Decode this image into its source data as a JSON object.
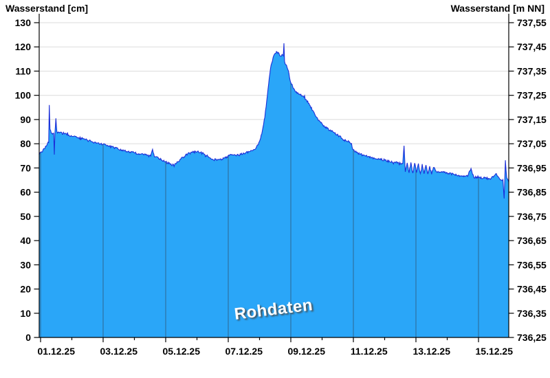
{
  "chart_data": {
    "type": "area",
    "watermark": "Rohdaten",
    "left_axis": {
      "label": "Wasserstand [cm]",
      "min": 0,
      "max": 130,
      "tick_step": 10,
      "ticks": [
        0,
        10,
        20,
        30,
        40,
        50,
        60,
        70,
        80,
        90,
        100,
        110,
        120,
        130
      ]
    },
    "right_axis": {
      "label": "Wasserstand [m NN]",
      "min": 736.25,
      "max": 737.55,
      "tick_step": 0.1,
      "ticks": [
        "736,25",
        "736,35",
        "736,45",
        "736,55",
        "736,65",
        "736,75",
        "736,85",
        "736,95",
        "737,05",
        "737,15",
        "737,25",
        "737,35",
        "737,45",
        "737,55"
      ]
    },
    "x_axis": {
      "tick_labels": [
        "01.12.25",
        "03.12.25",
        "05.12.25",
        "07.12.25",
        "09.12.25",
        "11.12.25",
        "13.12.25",
        "15.12.25"
      ],
      "label_center_days": [
        0.5,
        2.5,
        4.5,
        6.5,
        8.5,
        10.5,
        12.5,
        14.5
      ],
      "major_gridline_days": [
        0,
        2,
        4,
        6,
        8,
        10,
        12,
        14
      ],
      "minor_tick_days": [
        1,
        3,
        5,
        7,
        9,
        11,
        13
      ],
      "range_days": [
        -0.05,
        14.96
      ]
    },
    "grid": {
      "horizontal": true,
      "vertical_inside_area_only": true
    },
    "series": [
      {
        "name": "Wasserstand Rohdaten",
        "unit": "cm",
        "points": [
          [
            -0.05,
            75.5
          ],
          [
            0.08,
            77.5
          ],
          [
            0.18,
            79.0
          ],
          [
            0.26,
            80.5
          ],
          [
            0.28,
            96.0
          ],
          [
            0.3,
            86.0
          ],
          [
            0.34,
            84.5
          ],
          [
            0.42,
            84.3
          ],
          [
            0.44,
            75.5
          ],
          [
            0.46,
            84.2
          ],
          [
            0.49,
            90.5
          ],
          [
            0.52,
            85.0
          ],
          [
            0.6,
            84.5
          ],
          [
            0.75,
            84.3
          ],
          [
            0.9,
            83.6
          ],
          [
            1.05,
            83.0
          ],
          [
            1.2,
            82.6
          ],
          [
            1.35,
            82.2
          ],
          [
            1.5,
            81.4
          ],
          [
            1.65,
            80.8
          ],
          [
            1.8,
            80.3
          ],
          [
            2.0,
            79.8
          ],
          [
            2.2,
            78.9
          ],
          [
            2.4,
            78.3
          ],
          [
            2.6,
            77.4
          ],
          [
            2.8,
            76.8
          ],
          [
            3.0,
            76.2
          ],
          [
            3.2,
            75.7
          ],
          [
            3.4,
            75.2
          ],
          [
            3.52,
            74.9
          ],
          [
            3.58,
            77.7
          ],
          [
            3.64,
            74.6
          ],
          [
            3.8,
            73.8
          ],
          [
            4.0,
            72.6
          ],
          [
            4.15,
            71.5
          ],
          [
            4.25,
            71.3
          ],
          [
            4.4,
            72.6
          ],
          [
            4.55,
            74.4
          ],
          [
            4.7,
            75.8
          ],
          [
            4.85,
            76.5
          ],
          [
            5.0,
            76.6
          ],
          [
            5.1,
            76.4
          ],
          [
            5.25,
            75.6
          ],
          [
            5.4,
            74.3
          ],
          [
            5.5,
            73.6
          ],
          [
            5.65,
            73.3
          ],
          [
            5.8,
            73.6
          ],
          [
            5.95,
            74.6
          ],
          [
            6.1,
            75.4
          ],
          [
            6.25,
            75.0
          ],
          [
            6.4,
            75.6
          ],
          [
            6.55,
            76.2
          ],
          [
            6.7,
            76.8
          ],
          [
            6.82,
            77.6
          ],
          [
            6.9,
            78.6
          ],
          [
            7.0,
            81.0
          ],
          [
            7.07,
            84.0
          ],
          [
            7.13,
            88.0
          ],
          [
            7.19,
            93.5
          ],
          [
            7.25,
            100.0
          ],
          [
            7.31,
            107.0
          ],
          [
            7.37,
            112.5
          ],
          [
            7.43,
            115.5
          ],
          [
            7.5,
            117.3
          ],
          [
            7.56,
            117.9
          ],
          [
            7.62,
            117.4
          ],
          [
            7.67,
            116.2
          ],
          [
            7.72,
            116.9
          ],
          [
            7.76,
            116.3
          ],
          [
            7.78,
            121.5
          ],
          [
            7.8,
            114.0
          ],
          [
            7.84,
            112.6
          ],
          [
            7.88,
            111.6
          ],
          [
            7.92,
            110.2
          ],
          [
            7.96,
            107.2
          ],
          [
            8.0,
            105.2
          ],
          [
            8.06,
            103.6
          ],
          [
            8.12,
            102.2
          ],
          [
            8.2,
            100.8
          ],
          [
            8.3,
            100.2
          ],
          [
            8.4,
            99.6
          ],
          [
            8.5,
            98.0
          ],
          [
            8.6,
            96.0
          ],
          [
            8.72,
            93.4
          ],
          [
            8.85,
            90.6
          ],
          [
            9.0,
            88.2
          ],
          [
            9.1,
            87.0
          ],
          [
            9.25,
            85.6
          ],
          [
            9.4,
            84.4
          ],
          [
            9.55,
            83.2
          ],
          [
            9.7,
            81.6
          ],
          [
            9.82,
            80.8
          ],
          [
            9.9,
            80.2
          ],
          [
            10.0,
            77.6
          ],
          [
            10.1,
            76.4
          ],
          [
            10.2,
            75.7
          ],
          [
            10.35,
            75.2
          ],
          [
            10.5,
            74.8
          ],
          [
            10.65,
            74.2
          ],
          [
            10.8,
            73.9
          ],
          [
            11.0,
            73.2
          ],
          [
            11.15,
            72.7
          ],
          [
            11.3,
            72.4
          ],
          [
            11.45,
            72.1
          ],
          [
            11.58,
            71.9
          ],
          [
            11.62,
            79.2
          ],
          [
            11.66,
            68.4
          ],
          [
            11.72,
            72.1
          ],
          [
            11.78,
            68.0
          ],
          [
            11.84,
            72.3
          ],
          [
            11.9,
            67.9
          ],
          [
            11.96,
            72.0
          ],
          [
            12.02,
            68.1
          ],
          [
            12.08,
            71.8
          ],
          [
            12.14,
            67.7
          ],
          [
            12.2,
            71.6
          ],
          [
            12.26,
            67.6
          ],
          [
            12.32,
            71.2
          ],
          [
            12.38,
            67.5
          ],
          [
            12.44,
            70.7
          ],
          [
            12.5,
            67.4
          ],
          [
            12.56,
            70.2
          ],
          [
            12.65,
            68.6
          ],
          [
            12.8,
            68.3
          ],
          [
            13.0,
            68.0
          ],
          [
            13.2,
            67.4
          ],
          [
            13.35,
            67.0
          ],
          [
            13.5,
            66.7
          ],
          [
            13.65,
            66.5
          ],
          [
            13.76,
            69.8
          ],
          [
            13.85,
            66.2
          ],
          [
            14.0,
            66.0
          ],
          [
            14.2,
            65.8
          ],
          [
            14.4,
            65.6
          ],
          [
            14.55,
            67.6
          ],
          [
            14.68,
            65.4
          ],
          [
            14.78,
            65.2
          ],
          [
            14.82,
            57.4
          ],
          [
            14.86,
            73.2
          ],
          [
            14.9,
            66.0
          ],
          [
            14.96,
            64.3
          ]
        ]
      }
    ],
    "noise_amplitude_cm": 0.45,
    "colors": {
      "fill": "#2AA6F8",
      "line": "#1B2ED8",
      "grid_horizontal": "#DBDBDB",
      "grid_vertical": "#2E5876",
      "axis": "#000000",
      "watermark_text": "#FFFFFF"
    }
  }
}
